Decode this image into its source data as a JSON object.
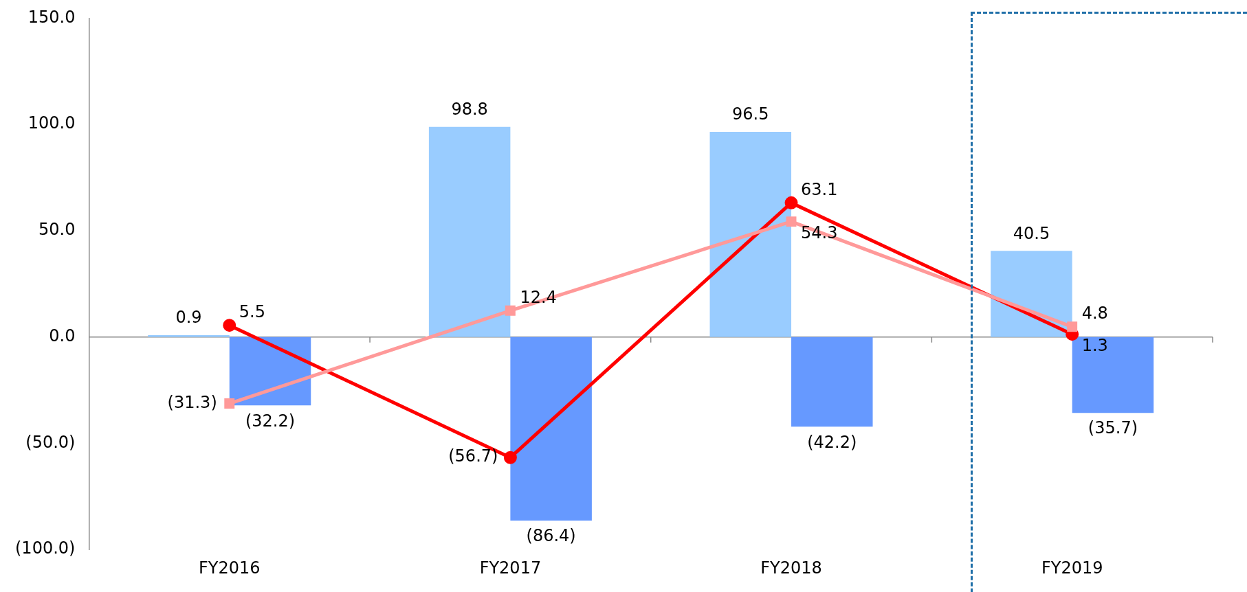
{
  "chart_data": {
    "type": "bar",
    "categories": [
      "FY2016",
      "FY2017",
      "FY2018",
      "FY2019"
    ],
    "series": [
      {
        "color": "#99ccff",
        "values": [
          0.9,
          98.8,
          96.5,
          40.5
        ],
        "value_labels": [
          "0.9",
          "98.8",
          "96.5",
          "40.5"
        ]
      },
      {
        "color": "#6699ff",
        "values": [
          -32.2,
          -86.4,
          -42.2,
          -35.7
        ],
        "value_labels": [
          "(32.2)",
          "(86.4)",
          "(42.2)",
          "(35.7)"
        ]
      },
      {
        "type": "line",
        "color": "#ff9999",
        "marker": "square",
        "values": [
          -31.3,
          12.4,
          54.3,
          4.8
        ],
        "value_labels": [
          "(31.3)",
          "12.4",
          "54.3",
          "4.8"
        ]
      },
      {
        "type": "line",
        "color": "#ff0000",
        "marker": "circle",
        "values": [
          5.5,
          -56.7,
          63.1,
          1.3
        ],
        "value_labels": [
          "5.5",
          "(56.7)",
          "63.1",
          "1.3"
        ]
      }
    ],
    "ylim": [
      -100,
      150
    ],
    "yticks": [
      {
        "value": -100,
        "label": "(100.0)"
      },
      {
        "value": -50,
        "label": "(50.0)"
      },
      {
        "value": 0,
        "label": "0.0"
      },
      {
        "value": 50,
        "label": "50.0"
      },
      {
        "value": 100,
        "label": "100.0"
      },
      {
        "value": 150,
        "label": "150.0"
      }
    ],
    "ref_lines": [
      {
        "axis": "y",
        "value": 0,
        "color": "#888888"
      }
    ],
    "grid": false,
    "legend": false
  }
}
